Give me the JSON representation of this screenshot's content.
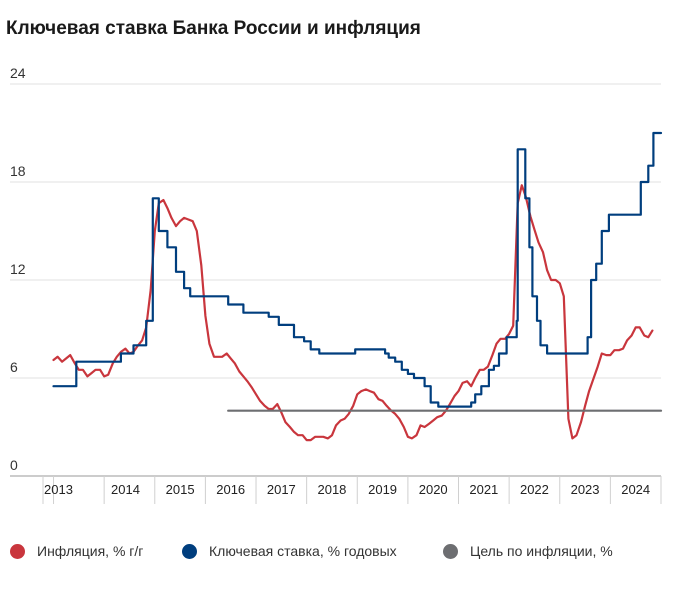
{
  "chart_data": {
    "type": "line",
    "title": "Ключевая ставка Банка России и инфляция",
    "xlabel": "",
    "ylabel": "",
    "ylim": [
      0,
      24
    ],
    "xlim": [
      2012.95,
      2025.0
    ],
    "yticks": [
      0,
      6,
      12,
      18,
      24
    ],
    "ytick_labels": [
      "0",
      "6",
      "12",
      "18",
      "24"
    ],
    "xticks": [
      2013.5,
      2014.5,
      2015.5,
      2016.5,
      2017.5,
      2018.5,
      2019.5,
      2020.5,
      2021.5,
      2022.5,
      2023.5,
      2024.5
    ],
    "xtick_labels": [
      "2013",
      "2014",
      "2015",
      "2016",
      "2017",
      "2018",
      "2019",
      "2020",
      "2021",
      "2022",
      "2023",
      "2024"
    ],
    "grid": true,
    "legend_position": "bottom",
    "series": [
      {
        "name": "Инфляция, % г/г",
        "color": "#c9363d",
        "step": false,
        "points": [
          [
            2013.0,
            7.1
          ],
          [
            2013.08,
            7.3
          ],
          [
            2013.17,
            7.0
          ],
          [
            2013.25,
            7.2
          ],
          [
            2013.33,
            7.4
          ],
          [
            2013.42,
            6.9
          ],
          [
            2013.5,
            6.5
          ],
          [
            2013.58,
            6.5
          ],
          [
            2013.67,
            6.1
          ],
          [
            2013.75,
            6.3
          ],
          [
            2013.83,
            6.5
          ],
          [
            2013.92,
            6.5
          ],
          [
            2014.0,
            6.1
          ],
          [
            2014.08,
            6.2
          ],
          [
            2014.17,
            6.9
          ],
          [
            2014.25,
            7.3
          ],
          [
            2014.33,
            7.6
          ],
          [
            2014.42,
            7.8
          ],
          [
            2014.5,
            7.5
          ],
          [
            2014.58,
            7.6
          ],
          [
            2014.67,
            8.0
          ],
          [
            2014.75,
            8.3
          ],
          [
            2014.83,
            9.1
          ],
          [
            2014.92,
            11.4
          ],
          [
            2015.0,
            15.0
          ],
          [
            2015.08,
            16.7
          ],
          [
            2015.17,
            16.9
          ],
          [
            2015.25,
            16.4
          ],
          [
            2015.33,
            15.8
          ],
          [
            2015.42,
            15.3
          ],
          [
            2015.5,
            15.6
          ],
          [
            2015.58,
            15.8
          ],
          [
            2015.67,
            15.7
          ],
          [
            2015.75,
            15.6
          ],
          [
            2015.83,
            15.0
          ],
          [
            2015.92,
            12.9
          ],
          [
            2016.0,
            9.8
          ],
          [
            2016.08,
            8.1
          ],
          [
            2016.17,
            7.3
          ],
          [
            2016.25,
            7.3
          ],
          [
            2016.33,
            7.3
          ],
          [
            2016.42,
            7.5
          ],
          [
            2016.5,
            7.2
          ],
          [
            2016.58,
            6.9
          ],
          [
            2016.67,
            6.4
          ],
          [
            2016.75,
            6.1
          ],
          [
            2016.83,
            5.8
          ],
          [
            2016.92,
            5.4
          ],
          [
            2017.0,
            5.0
          ],
          [
            2017.08,
            4.6
          ],
          [
            2017.17,
            4.3
          ],
          [
            2017.25,
            4.1
          ],
          [
            2017.33,
            4.1
          ],
          [
            2017.42,
            4.4
          ],
          [
            2017.5,
            3.9
          ],
          [
            2017.58,
            3.3
          ],
          [
            2017.67,
            3.0
          ],
          [
            2017.75,
            2.7
          ],
          [
            2017.83,
            2.5
          ],
          [
            2017.92,
            2.5
          ],
          [
            2018.0,
            2.2
          ],
          [
            2018.08,
            2.2
          ],
          [
            2018.17,
            2.4
          ],
          [
            2018.25,
            2.4
          ],
          [
            2018.33,
            2.4
          ],
          [
            2018.42,
            2.3
          ],
          [
            2018.5,
            2.5
          ],
          [
            2018.58,
            3.1
          ],
          [
            2018.67,
            3.4
          ],
          [
            2018.75,
            3.5
          ],
          [
            2018.83,
            3.8
          ],
          [
            2018.92,
            4.3
          ],
          [
            2019.0,
            5.0
          ],
          [
            2019.08,
            5.2
          ],
          [
            2019.17,
            5.3
          ],
          [
            2019.25,
            5.2
          ],
          [
            2019.33,
            5.1
          ],
          [
            2019.42,
            4.7
          ],
          [
            2019.5,
            4.6
          ],
          [
            2019.58,
            4.3
          ],
          [
            2019.67,
            4.0
          ],
          [
            2019.75,
            3.8
          ],
          [
            2019.83,
            3.5
          ],
          [
            2019.92,
            3.0
          ],
          [
            2020.0,
            2.4
          ],
          [
            2020.08,
            2.3
          ],
          [
            2020.17,
            2.5
          ],
          [
            2020.25,
            3.1
          ],
          [
            2020.33,
            3.0
          ],
          [
            2020.42,
            3.2
          ],
          [
            2020.5,
            3.4
          ],
          [
            2020.58,
            3.6
          ],
          [
            2020.67,
            3.7
          ],
          [
            2020.75,
            4.0
          ],
          [
            2020.83,
            4.4
          ],
          [
            2020.92,
            4.9
          ],
          [
            2021.0,
            5.2
          ],
          [
            2021.08,
            5.7
          ],
          [
            2021.17,
            5.8
          ],
          [
            2021.25,
            5.5
          ],
          [
            2021.33,
            6.0
          ],
          [
            2021.42,
            6.5
          ],
          [
            2021.5,
            6.5
          ],
          [
            2021.58,
            6.7
          ],
          [
            2021.67,
            7.4
          ],
          [
            2021.75,
            8.1
          ],
          [
            2021.83,
            8.4
          ],
          [
            2021.92,
            8.4
          ],
          [
            2022.0,
            8.7
          ],
          [
            2022.08,
            9.2
          ],
          [
            2022.17,
            16.7
          ],
          [
            2022.25,
            17.8
          ],
          [
            2022.33,
            17.1
          ],
          [
            2022.42,
            15.9
          ],
          [
            2022.5,
            15.1
          ],
          [
            2022.58,
            14.3
          ],
          [
            2022.67,
            13.7
          ],
          [
            2022.75,
            12.6
          ],
          [
            2022.83,
            12.0
          ],
          [
            2022.92,
            12.0
          ],
          [
            2023.0,
            11.8
          ],
          [
            2023.08,
            11.0
          ],
          [
            2023.17,
            3.5
          ],
          [
            2023.25,
            2.3
          ],
          [
            2023.33,
            2.5
          ],
          [
            2023.42,
            3.3
          ],
          [
            2023.5,
            4.3
          ],
          [
            2023.58,
            5.2
          ],
          [
            2023.67,
            6.0
          ],
          [
            2023.75,
            6.7
          ],
          [
            2023.83,
            7.5
          ],
          [
            2023.92,
            7.4
          ],
          [
            2024.0,
            7.4
          ],
          [
            2024.08,
            7.7
          ],
          [
            2024.17,
            7.7
          ],
          [
            2024.25,
            7.8
          ],
          [
            2024.33,
            8.3
          ],
          [
            2024.42,
            8.6
          ],
          [
            2024.5,
            9.1
          ],
          [
            2024.58,
            9.1
          ],
          [
            2024.67,
            8.6
          ],
          [
            2024.75,
            8.5
          ],
          [
            2024.83,
            8.9
          ]
        ]
      },
      {
        "name": "Ключевая ставка, % годовых",
        "color": "#003e7e",
        "step": true,
        "points": [
          [
            2013.0,
            5.5
          ],
          [
            2013.45,
            7.0
          ],
          [
            2014.17,
            7.0
          ],
          [
            2014.33,
            7.5
          ],
          [
            2014.58,
            8.0
          ],
          [
            2014.83,
            9.5
          ],
          [
            2014.96,
            17.0
          ],
          [
            2015.08,
            15.0
          ],
          [
            2015.25,
            14.0
          ],
          [
            2015.42,
            12.5
          ],
          [
            2015.58,
            11.5
          ],
          [
            2015.7,
            11.0
          ],
          [
            2016.45,
            10.5
          ],
          [
            2016.75,
            10.0
          ],
          [
            2017.25,
            9.75
          ],
          [
            2017.45,
            9.25
          ],
          [
            2017.75,
            8.5
          ],
          [
            2017.95,
            8.25
          ],
          [
            2018.08,
            7.75
          ],
          [
            2018.25,
            7.5
          ],
          [
            2018.75,
            7.5
          ],
          [
            2018.96,
            7.75
          ],
          [
            2019.33,
            7.75
          ],
          [
            2019.55,
            7.5
          ],
          [
            2019.62,
            7.25
          ],
          [
            2019.75,
            7.0
          ],
          [
            2019.88,
            6.5
          ],
          [
            2020.0,
            6.25
          ],
          [
            2020.12,
            6.0
          ],
          [
            2020.33,
            5.5
          ],
          [
            2020.45,
            4.5
          ],
          [
            2020.6,
            4.25
          ],
          [
            2021.25,
            4.5
          ],
          [
            2021.33,
            5.0
          ],
          [
            2021.45,
            5.5
          ],
          [
            2021.6,
            6.5
          ],
          [
            2021.7,
            6.75
          ],
          [
            2021.8,
            7.5
          ],
          [
            2021.95,
            8.5
          ],
          [
            2022.15,
            9.5
          ],
          [
            2022.17,
            20.0
          ],
          [
            2022.32,
            17.0
          ],
          [
            2022.4,
            14.0
          ],
          [
            2022.46,
            11.0
          ],
          [
            2022.55,
            9.5
          ],
          [
            2022.62,
            8.0
          ],
          [
            2022.75,
            7.5
          ],
          [
            2023.55,
            8.5
          ],
          [
            2023.62,
            12.0
          ],
          [
            2023.72,
            13.0
          ],
          [
            2023.83,
            15.0
          ],
          [
            2023.97,
            16.0
          ],
          [
            2024.6,
            18.0
          ],
          [
            2024.75,
            19.0
          ],
          [
            2024.85,
            21.0
          ],
          [
            2025.0,
            21.0
          ]
        ]
      },
      {
        "name": "Цель по инфляции, %",
        "color": "#6d6e71",
        "step": false,
        "points": [
          [
            2016.45,
            4.0
          ],
          [
            2025.0,
            4.0
          ]
        ]
      }
    ]
  }
}
